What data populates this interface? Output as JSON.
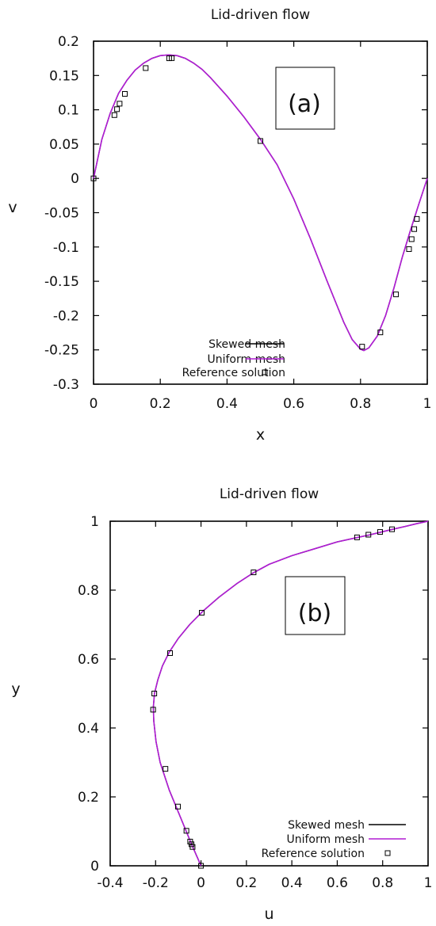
{
  "chart_data": [
    {
      "type": "line",
      "title": "Lid-driven flow",
      "xlabel": "x",
      "ylabel": "v",
      "panel_label": "(a)",
      "xlim": [
        0,
        1
      ],
      "ylim": [
        -0.3,
        0.2
      ],
      "xticks": [
        "0",
        "0.2",
        "0.4",
        "0.6",
        "0.8",
        "1"
      ],
      "yticks": [
        "-0.3",
        "-0.25",
        "-0.2",
        "-0.15",
        "-0.1",
        "-0.05",
        "0",
        "0.05",
        "0.1",
        "0.15",
        "0.2"
      ],
      "grid": false,
      "legend_position": "bottom-left",
      "series": [
        {
          "name": "Skewed mesh",
          "style": "line",
          "color": "#000000",
          "x": [
            0,
            0.025,
            0.05,
            0.075,
            0.1,
            0.125,
            0.15,
            0.175,
            0.2,
            0.225,
            0.25,
            0.275,
            0.3,
            0.325,
            0.35,
            0.4,
            0.45,
            0.5,
            0.55,
            0.6,
            0.65,
            0.7,
            0.75,
            0.775,
            0.8,
            0.81,
            0.825,
            0.85,
            0.875,
            0.9,
            0.925,
            0.95,
            0.975,
            1
          ],
          "y": [
            0,
            0.057,
            0.095,
            0.124,
            0.143,
            0.158,
            0.168,
            0.175,
            0.179,
            0.18,
            0.179,
            0.175,
            0.168,
            0.159,
            0.147,
            0.12,
            0.09,
            0.057,
            0.02,
            -0.03,
            -0.088,
            -0.15,
            -0.21,
            -0.235,
            -0.249,
            -0.251,
            -0.247,
            -0.23,
            -0.2,
            -0.16,
            -0.115,
            -0.075,
            -0.037,
            0
          ]
        },
        {
          "name": "Uniform mesh",
          "style": "line",
          "color": "#b01cd4",
          "x": [
            0,
            0.025,
            0.05,
            0.075,
            0.1,
            0.125,
            0.15,
            0.175,
            0.2,
            0.225,
            0.25,
            0.275,
            0.3,
            0.325,
            0.35,
            0.4,
            0.45,
            0.5,
            0.55,
            0.6,
            0.65,
            0.7,
            0.75,
            0.775,
            0.8,
            0.81,
            0.825,
            0.85,
            0.875,
            0.9,
            0.925,
            0.95,
            0.975,
            1
          ],
          "y": [
            0,
            0.057,
            0.095,
            0.124,
            0.143,
            0.158,
            0.168,
            0.175,
            0.179,
            0.18,
            0.179,
            0.175,
            0.168,
            0.159,
            0.147,
            0.12,
            0.09,
            0.057,
            0.02,
            -0.03,
            -0.088,
            -0.15,
            -0.21,
            -0.235,
            -0.249,
            -0.251,
            -0.247,
            -0.23,
            -0.2,
            -0.16,
            -0.115,
            -0.075,
            -0.037,
            0
          ]
        },
        {
          "name": "Reference solution",
          "style": "markers",
          "color": "#000000",
          "x": [
            0,
            0.0625,
            0.0703,
            0.0781,
            0.0938,
            0.1563,
            0.2266,
            0.2344,
            0.5,
            0.8047,
            0.8594,
            0.9063,
            0.9453,
            0.9531,
            0.9609,
            0.9688
          ],
          "y": [
            0,
            0.0923,
            0.1009,
            0.1089,
            0.1232,
            0.1608,
            0.1751,
            0.1753,
            0.0545,
            -0.2453,
            -0.2245,
            -0.1691,
            -0.1031,
            -0.0886,
            -0.0739,
            -0.0591
          ]
        }
      ]
    },
    {
      "type": "line",
      "title": "Lid-driven flow",
      "xlabel": "u",
      "ylabel": "y",
      "panel_label": "(b)",
      "xlim": [
        -0.4,
        1
      ],
      "ylim": [
        0,
        1
      ],
      "xticks": [
        "-0.4",
        "-0.2",
        "0",
        "0.2",
        "0.4",
        "0.6",
        "0.8",
        "1"
      ],
      "yticks": [
        "0",
        "0.2",
        "0.4",
        "0.6",
        "0.8",
        "1"
      ],
      "grid": false,
      "legend_position": "bottom-right",
      "series": [
        {
          "name": "Skewed mesh",
          "style": "line",
          "color": "#000000",
          "u": [
            0,
            -0.02,
            -0.04,
            -0.065,
            -0.09,
            -0.115,
            -0.14,
            -0.16,
            -0.18,
            -0.198,
            -0.208,
            -0.21,
            -0.205,
            -0.19,
            -0.17,
            -0.14,
            -0.1,
            -0.05,
            0.01,
            0.08,
            0.16,
            0.23,
            0.3,
            0.4,
            0.5,
            0.6,
            0.69,
            0.74,
            0.79,
            0.84,
            0.9,
            0.95,
            1
          ],
          "y": [
            0,
            0.03,
            0.06,
            0.1,
            0.14,
            0.18,
            0.22,
            0.26,
            0.3,
            0.36,
            0.42,
            0.46,
            0.5,
            0.54,
            0.58,
            0.62,
            0.66,
            0.7,
            0.74,
            0.78,
            0.82,
            0.85,
            0.875,
            0.9,
            0.92,
            0.94,
            0.953,
            0.96,
            0.968,
            0.976,
            0.985,
            0.993,
            1
          ]
        },
        {
          "name": "Uniform mesh",
          "style": "line",
          "color": "#b01cd4",
          "u": [
            0,
            -0.02,
            -0.04,
            -0.065,
            -0.09,
            -0.115,
            -0.14,
            -0.16,
            -0.18,
            -0.198,
            -0.208,
            -0.21,
            -0.205,
            -0.19,
            -0.17,
            -0.14,
            -0.1,
            -0.05,
            0.01,
            0.08,
            0.16,
            0.23,
            0.3,
            0.4,
            0.5,
            0.6,
            0.69,
            0.74,
            0.79,
            0.84,
            0.9,
            0.95,
            1
          ],
          "y": [
            0,
            0.03,
            0.06,
            0.1,
            0.14,
            0.18,
            0.22,
            0.26,
            0.3,
            0.36,
            0.42,
            0.46,
            0.5,
            0.54,
            0.58,
            0.62,
            0.66,
            0.7,
            0.74,
            0.78,
            0.82,
            0.85,
            0.875,
            0.9,
            0.92,
            0.94,
            0.953,
            0.96,
            0.968,
            0.976,
            0.985,
            0.993,
            1
          ]
        },
        {
          "name": "Reference solution",
          "style": "markers",
          "color": "#000000",
          "u": [
            0,
            -0.0372,
            -0.0419,
            -0.0478,
            -0.0643,
            -0.1015,
            -0.1566,
            -0.2109,
            -0.2058,
            -0.1364,
            0.0033,
            0.2315,
            0.6872,
            0.7372,
            0.7887,
            0.8412
          ],
          "y": [
            0,
            0.0547,
            0.0625,
            0.0703,
            0.1016,
            0.1719,
            0.2813,
            0.4531,
            0.5,
            0.6172,
            0.7344,
            0.8516,
            0.9531,
            0.9609,
            0.9688,
            0.9766
          ]
        }
      ]
    }
  ]
}
